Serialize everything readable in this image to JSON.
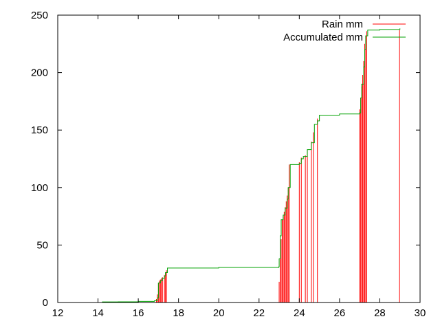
{
  "chart_data": {
    "type": "line",
    "title": "",
    "xlabel": "",
    "ylabel": "",
    "xlim": [
      12,
      30
    ],
    "ylim": [
      0,
      250
    ],
    "x_ticks": [
      12,
      14,
      16,
      18,
      20,
      22,
      24,
      26,
      28,
      30
    ],
    "y_ticks": [
      0,
      50,
      100,
      150,
      200,
      250
    ],
    "grid": false,
    "legend_position": "top-right",
    "series": [
      {
        "name": "Rain mm",
        "style": "impulses",
        "color": "#ff0000",
        "points": [
          [
            16.9,
            3
          ],
          [
            16.95,
            7
          ],
          [
            17.0,
            17
          ],
          [
            17.05,
            19
          ],
          [
            17.1,
            20
          ],
          [
            17.15,
            21
          ],
          [
            17.2,
            22
          ],
          [
            17.3,
            24
          ],
          [
            17.35,
            26
          ],
          [
            17.4,
            28
          ],
          [
            23.0,
            18
          ],
          [
            23.05,
            38
          ],
          [
            23.1,
            55
          ],
          [
            23.15,
            72
          ],
          [
            23.2,
            75
          ],
          [
            23.25,
            79
          ],
          [
            23.3,
            83
          ],
          [
            23.35,
            88
          ],
          [
            23.4,
            93
          ],
          [
            23.45,
            100
          ],
          [
            23.5,
            120
          ],
          [
            24.0,
            122
          ],
          [
            24.1,
            126
          ],
          [
            24.3,
            128
          ],
          [
            24.4,
            133
          ],
          [
            24.6,
            140
          ],
          [
            24.7,
            148
          ],
          [
            24.9,
            160
          ],
          [
            27.0,
            168
          ],
          [
            27.05,
            178
          ],
          [
            27.1,
            188
          ],
          [
            27.15,
            198
          ],
          [
            27.2,
            210
          ],
          [
            27.25,
            225
          ],
          [
            27.3,
            232
          ],
          [
            27.35,
            236
          ],
          [
            28.98,
            237
          ]
        ]
      },
      {
        "name": "Accumulated mm",
        "style": "line",
        "color": "#00a000",
        "points": [
          [
            14.2,
            0.5
          ],
          [
            15.0,
            0.6
          ],
          [
            16.0,
            1.0
          ],
          [
            16.8,
            1.5
          ],
          [
            16.95,
            4
          ],
          [
            17.0,
            17
          ],
          [
            17.1,
            19
          ],
          [
            17.2,
            21
          ],
          [
            17.3,
            23
          ],
          [
            17.35,
            26
          ],
          [
            17.45,
            30
          ],
          [
            20.0,
            30.5
          ],
          [
            22.98,
            31
          ],
          [
            23.0,
            38
          ],
          [
            23.05,
            58
          ],
          [
            23.1,
            72
          ],
          [
            23.2,
            76
          ],
          [
            23.3,
            82
          ],
          [
            23.4,
            90
          ],
          [
            23.45,
            100
          ],
          [
            23.55,
            120
          ],
          [
            24.0,
            121
          ],
          [
            24.1,
            125
          ],
          [
            24.2,
            127
          ],
          [
            24.4,
            133
          ],
          [
            24.6,
            139
          ],
          [
            24.75,
            155
          ],
          [
            24.9,
            158
          ],
          [
            25.0,
            163
          ],
          [
            26.0,
            164
          ],
          [
            27.0,
            165
          ],
          [
            27.05,
            178
          ],
          [
            27.1,
            190
          ],
          [
            27.2,
            205
          ],
          [
            27.25,
            220
          ],
          [
            27.3,
            232
          ],
          [
            27.4,
            237
          ],
          [
            28.0,
            237.5
          ],
          [
            29.0,
            238.5
          ]
        ]
      }
    ]
  }
}
